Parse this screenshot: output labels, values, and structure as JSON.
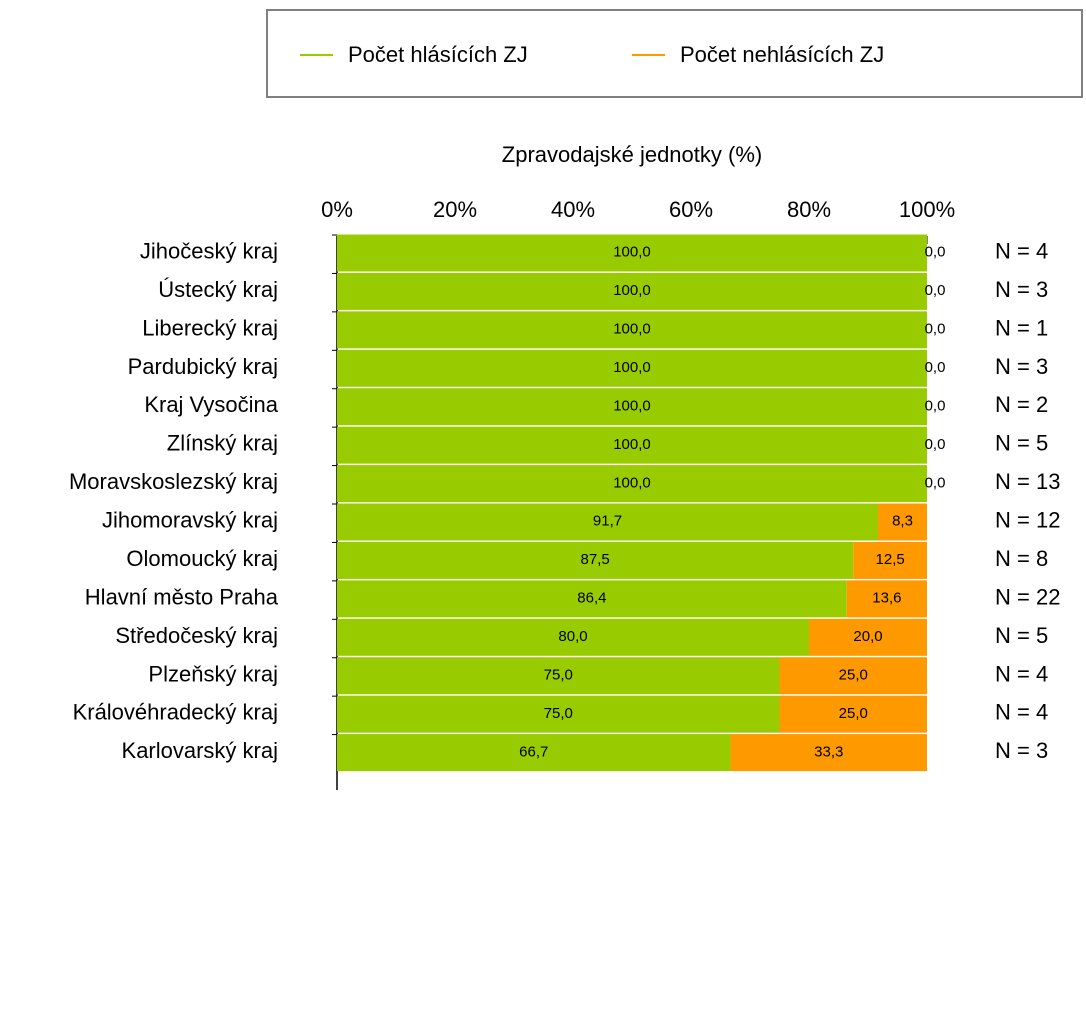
{
  "chart_data": {
    "type": "stacked_barh",
    "x_label": "Zpravodajské jednotky (%)",
    "categories": [
      "Jihočeský kraj",
      "Ústecký kraj",
      "Liberecký kraj",
      "Pardubický kraj",
      "Kraj Vysočina",
      "Zlínský kraj",
      "Moravskoslezský kraj",
      "Jihomoravský kraj",
      "Olomoucký kraj",
      "Hlavní město Praha",
      "Středočeský kraj",
      "Plzeňský kraj",
      "Královéhradecký kraj",
      "Karlovarský kraj"
    ],
    "series": [
      {
        "name": "Počet hlásících ZJ",
        "color": "#99cc00",
        "values": [
          100,
          100,
          100,
          100,
          100,
          100,
          100,
          91.7,
          87.5,
          86.4,
          80,
          75,
          75,
          66.7
        ],
        "value_labels": [
          "100,0",
          "100,0",
          "100,0",
          "100,0",
          "100,0",
          "100,0",
          "100,0",
          "91,7",
          "87,5",
          "86,4",
          "80,0",
          "75,0",
          "75,0",
          "66,7"
        ]
      },
      {
        "name": "Počet nehlásících ZJ",
        "color": "#ff9900",
        "values": [
          0,
          0,
          0,
          0,
          0,
          0,
          0,
          8.3,
          12.5,
          13.6,
          20,
          25,
          25,
          33.3
        ],
        "value_labels": [
          "0,0",
          "0,0",
          "0,0",
          "0,0",
          "0,0",
          "0,0",
          "0,0",
          "8,3",
          "12,5",
          "13,6",
          "20,0",
          "25,0",
          "25,0",
          "33,3"
        ]
      }
    ],
    "n_labels": [
      "N = 4",
      "N = 3",
      "N = 1",
      "N = 3",
      "N = 2",
      "N = 5",
      "N = 13",
      "N = 12",
      "N = 8",
      "N = 22",
      "N = 5",
      "N = 4",
      "N = 4",
      "N = 3"
    ],
    "xlim": [
      0,
      100
    ],
    "xticks": [
      {
        "value": 0,
        "label": "0%"
      },
      {
        "value": 20,
        "label": "20%"
      },
      {
        "value": 40,
        "label": "40%"
      },
      {
        "value": 60,
        "label": "60%"
      },
      {
        "value": 80,
        "label": "80%"
      },
      {
        "value": 100,
        "label": "100%"
      }
    ],
    "legend": "top"
  }
}
